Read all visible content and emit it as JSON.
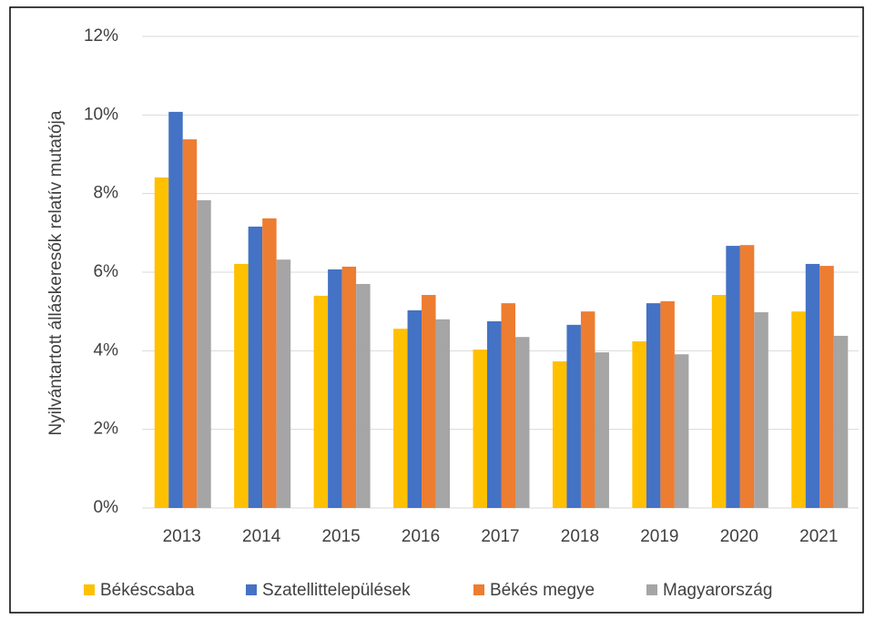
{
  "chart_data": {
    "type": "bar",
    "y_label": "Nyilvántartott álláskeresők relatív mutatója",
    "categories": [
      "2013",
      "2014",
      "2015",
      "2016",
      "2017",
      "2018",
      "2019",
      "2020",
      "2021"
    ],
    "series": [
      {
        "name": "Békéscsaba",
        "color": "#FFC000",
        "values": [
          8.41,
          6.21,
          5.4,
          4.56,
          4.03,
          3.73,
          4.24,
          5.42,
          5.0
        ]
      },
      {
        "name": "Szatellittelepülések",
        "color": "#4472C4",
        "values": [
          10.08,
          7.16,
          6.07,
          5.03,
          4.75,
          4.66,
          5.21,
          6.67,
          6.21
        ]
      },
      {
        "name": "Békés megye",
        "color": "#ED7D31",
        "values": [
          9.38,
          7.37,
          6.14,
          5.42,
          5.21,
          5.0,
          5.26,
          6.69,
          6.16
        ]
      },
      {
        "name": "Magyarország",
        "color": "#A5A5A5",
        "values": [
          7.83,
          6.32,
          5.7,
          4.8,
          4.35,
          3.96,
          3.91,
          4.98,
          4.38
        ]
      }
    ],
    "ylim": [
      0,
      12
    ],
    "yticks": [
      {
        "value": 0,
        "label": "0%"
      },
      {
        "value": 2,
        "label": "2%"
      },
      {
        "value": 4,
        "label": "4%"
      },
      {
        "value": 6,
        "label": "6%"
      },
      {
        "value": 8,
        "label": "8%"
      },
      {
        "value": 10,
        "label": "10%"
      },
      {
        "value": 12,
        "label": "12%"
      }
    ],
    "grid": true,
    "legend": "bottom"
  }
}
